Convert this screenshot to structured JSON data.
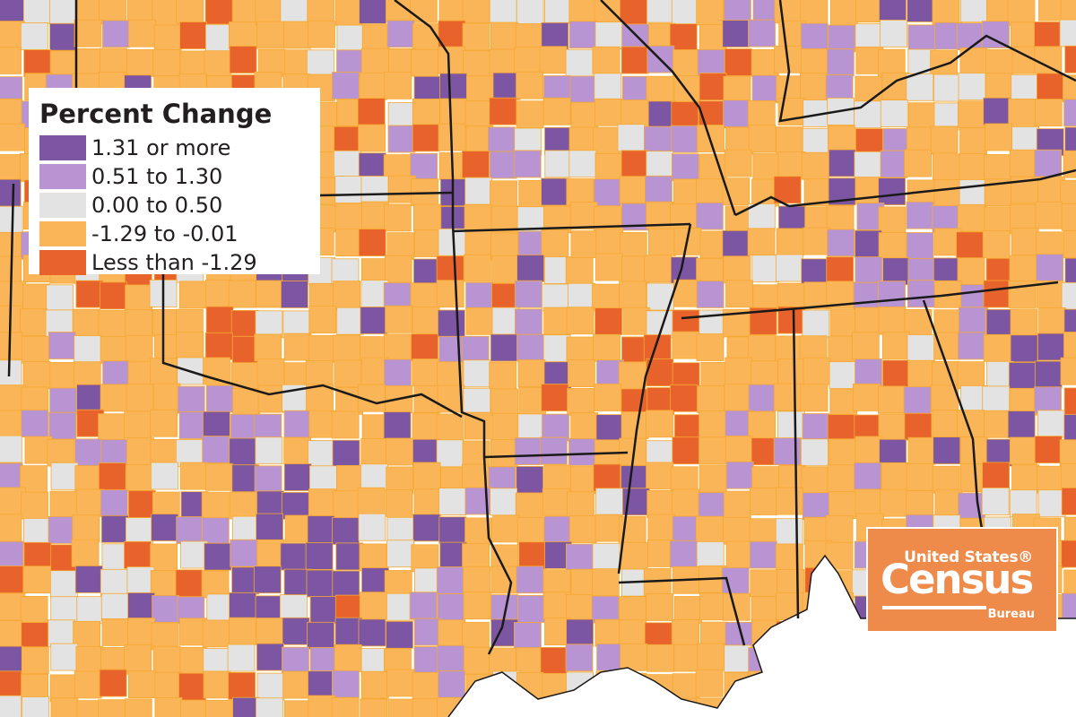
{
  "legend": {
    "title": "Percent Change",
    "items": [
      {
        "label": "1.31 or more",
        "color": "#7c55a3"
      },
      {
        "label": "0.51 to 1.30",
        "color": "#b994d2"
      },
      {
        "label": "0.00 to 0.50",
        "color": "#e3e3e3"
      },
      {
        "label": "-1.29 to -0.01",
        "color": "#fbb559"
      },
      {
        "label": "Less than -1.29",
        "color": "#e8632c"
      }
    ]
  },
  "logo": {
    "line1": "United States®",
    "line2": "Census",
    "line3": "Bureau"
  },
  "colors": {
    "ocean": "#ffffff",
    "state_border": "#1a1a1a",
    "county_border": "#f5a830",
    "logo_bg": "#ee8a4a"
  }
}
